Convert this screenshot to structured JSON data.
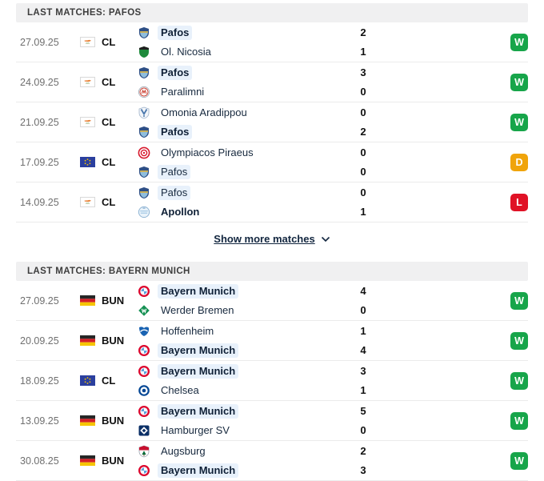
{
  "result_colors": {
    "W": "#17a54a",
    "D": "#f0a40b",
    "L": "#e01226"
  },
  "highlight_color": "#e8f1fb",
  "sections": [
    {
      "title": "LAST MATCHES: PAFOS",
      "show_more": {
        "label": "Show more matches",
        "icon": "chevron-down"
      },
      "matches": [
        {
          "date": "27.09.25",
          "competition": "CL",
          "competition_flag": "cyprus-flag",
          "teams": [
            {
              "name": "Pafos",
              "logo": "pafos",
              "score": "2",
              "bold": true,
              "highlighted": true
            },
            {
              "name": "Ol. Nicosia",
              "logo": "ol-nicosia",
              "score": "1",
              "bold": false,
              "highlighted": false
            }
          ],
          "result": "W"
        },
        {
          "date": "24.09.25",
          "competition": "CL",
          "competition_flag": "cyprus-flag",
          "teams": [
            {
              "name": "Pafos",
              "logo": "pafos",
              "score": "3",
              "bold": true,
              "highlighted": true
            },
            {
              "name": "Paralimni",
              "logo": "paralimni",
              "score": "0",
              "bold": false,
              "highlighted": false
            }
          ],
          "result": "W"
        },
        {
          "date": "21.09.25",
          "competition": "CL",
          "competition_flag": "cyprus-flag",
          "teams": [
            {
              "name": "Omonia Aradippou",
              "logo": "omonia-aradippou",
              "score": "0",
              "bold": false,
              "highlighted": false
            },
            {
              "name": "Pafos",
              "logo": "pafos",
              "score": "2",
              "bold": true,
              "highlighted": true
            }
          ],
          "result": "W"
        },
        {
          "date": "17.09.25",
          "competition": "CL",
          "competition_flag": "eu-flag",
          "teams": [
            {
              "name": "Olympiacos Piraeus",
              "logo": "olympiacos",
              "score": "0",
              "bold": false,
              "highlighted": false
            },
            {
              "name": "Pafos",
              "logo": "pafos",
              "score": "0",
              "bold": false,
              "highlighted": true
            }
          ],
          "result": "D"
        },
        {
          "date": "14.09.25",
          "competition": "CL",
          "competition_flag": "cyprus-flag",
          "teams": [
            {
              "name": "Pafos",
              "logo": "pafos",
              "score": "0",
              "bold": false,
              "highlighted": true
            },
            {
              "name": "Apollon",
              "logo": "apollon",
              "score": "1",
              "bold": true,
              "highlighted": false
            }
          ],
          "result": "L"
        }
      ]
    },
    {
      "title": "LAST MATCHES: BAYERN MUNICH",
      "matches": [
        {
          "date": "27.09.25",
          "competition": "BUN",
          "competition_flag": "germany-flag",
          "teams": [
            {
              "name": "Bayern Munich",
              "logo": "bayern-munich",
              "score": "4",
              "bold": true,
              "highlighted": true
            },
            {
              "name": "Werder Bremen",
              "logo": "werder-bremen",
              "score": "0",
              "bold": false,
              "highlighted": false
            }
          ],
          "result": "W"
        },
        {
          "date": "20.09.25",
          "competition": "BUN",
          "competition_flag": "germany-flag",
          "teams": [
            {
              "name": "Hoffenheim",
              "logo": "hoffenheim",
              "score": "1",
              "bold": false,
              "highlighted": false
            },
            {
              "name": "Bayern Munich",
              "logo": "bayern-munich",
              "score": "4",
              "bold": true,
              "highlighted": true
            }
          ],
          "result": "W"
        },
        {
          "date": "18.09.25",
          "competition": "CL",
          "competition_flag": "eu-flag",
          "teams": [
            {
              "name": "Bayern Munich",
              "logo": "bayern-munich",
              "score": "3",
              "bold": true,
              "highlighted": true
            },
            {
              "name": "Chelsea",
              "logo": "chelsea",
              "score": "1",
              "bold": false,
              "highlighted": false
            }
          ],
          "result": "W"
        },
        {
          "date": "13.09.25",
          "competition": "BUN",
          "competition_flag": "germany-flag",
          "teams": [
            {
              "name": "Bayern Munich",
              "logo": "bayern-munich",
              "score": "5",
              "bold": true,
              "highlighted": true
            },
            {
              "name": "Hamburger SV",
              "logo": "hamburger-sv",
              "score": "0",
              "bold": false,
              "highlighted": false
            }
          ],
          "result": "W"
        },
        {
          "date": "30.08.25",
          "competition": "BUN",
          "competition_flag": "germany-flag",
          "teams": [
            {
              "name": "Augsburg",
              "logo": "augsburg",
              "score": "2",
              "bold": false,
              "highlighted": false
            },
            {
              "name": "Bayern Munich",
              "logo": "bayern-munich",
              "score": "3",
              "bold": true,
              "highlighted": true
            }
          ],
          "result": "W"
        }
      ]
    }
  ]
}
